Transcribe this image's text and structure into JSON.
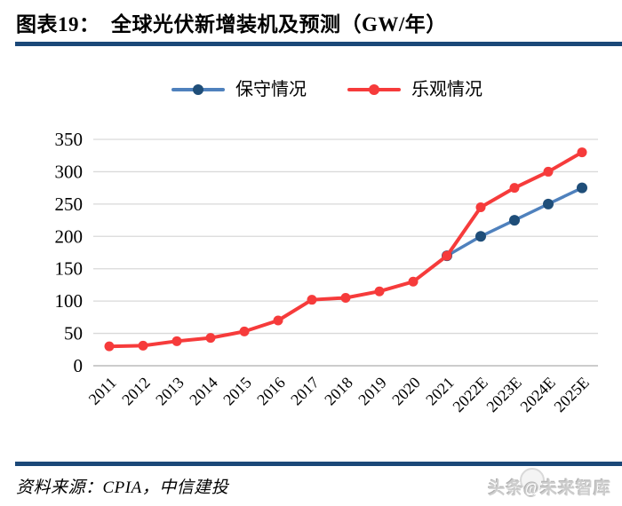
{
  "header": {
    "title": "图表19：  全球光伏新增装机及预测（GW/年）"
  },
  "legend": [
    {
      "label": "保守情况",
      "line_color": "#4F81BD",
      "marker_color": "#1F4E79"
    },
    {
      "label": "乐观情况",
      "line_color": "#F63B3B",
      "marker_color": "#F63B3B"
    }
  ],
  "chart_data": {
    "type": "line",
    "title": "全球光伏新增装机及预测（GW/年）",
    "categories": [
      "2011",
      "2012",
      "2013",
      "2014",
      "2015",
      "2016",
      "2017",
      "2018",
      "2019",
      "2020",
      "2021",
      "2022E",
      "2023E",
      "2024E",
      "2025E"
    ],
    "series": [
      {
        "name": "保守情况",
        "color": "#4F81BD",
        "marker_color": "#1F4E79",
        "values": [
          null,
          null,
          null,
          null,
          null,
          null,
          null,
          null,
          null,
          null,
          170,
          200,
          225,
          250,
          275
        ]
      },
      {
        "name": "乐观情况",
        "color": "#F63B3B",
        "marker_color": "#F63B3B",
        "values": [
          30,
          31,
          38,
          43,
          53,
          70,
          102,
          105,
          115,
          130,
          170,
          245,
          275,
          300,
          330
        ]
      }
    ],
    "xlabel": "",
    "ylabel": "",
    "ylim": [
      0,
      350
    ],
    "yticks": [
      0,
      50,
      100,
      150,
      200,
      250,
      300,
      350
    ],
    "grid": true,
    "legend_position": "top",
    "grid_color": "#D9D9D9",
    "baseline_color": "#ADADAD"
  },
  "footer": {
    "source": "资料来源：CPIA，中信建投",
    "watermark": "头条@未来智库"
  }
}
